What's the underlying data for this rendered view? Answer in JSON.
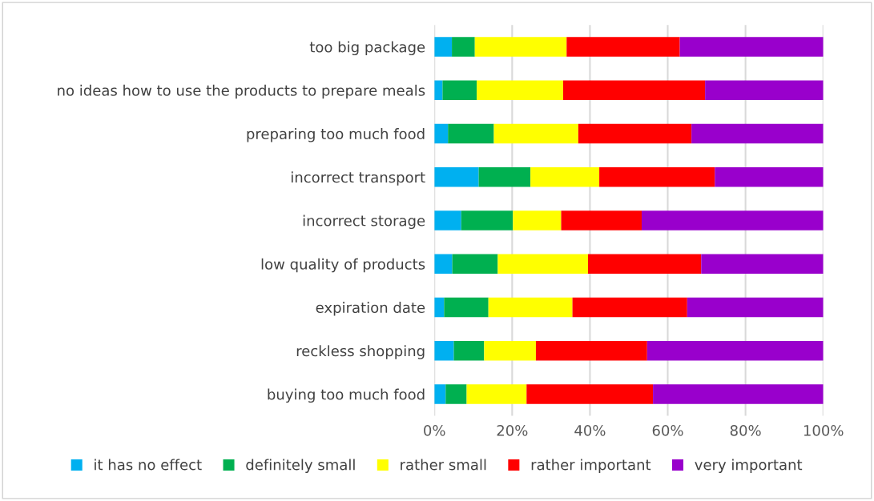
{
  "chart_data": {
    "type": "bar",
    "orientation": "horizontal",
    "stacked": true,
    "categories": [
      "too big package",
      "no ideas how to use the products to prepare meals",
      "preparing too much food",
      "incorrect transport",
      "incorrect storage",
      "low quality of products",
      "expiration date",
      "reckless shopping",
      "buying too much food"
    ],
    "series": [
      {
        "name": "it has no effect",
        "color": "#00b0f0",
        "values": [
          4.5,
          2.1,
          3.5,
          11.4,
          6.9,
          4.6,
          2.5,
          5.0,
          2.9
        ]
      },
      {
        "name": "definitely small",
        "color": "#00b050",
        "values": [
          5.9,
          8.8,
          11.8,
          13.3,
          13.3,
          11.7,
          11.4,
          7.8,
          5.4
        ]
      },
      {
        "name": "rather small",
        "color": "#ffff00",
        "values": [
          23.6,
          22.2,
          21.7,
          17.7,
          12.4,
          23.2,
          21.6,
          13.3,
          15.4
        ]
      },
      {
        "name": "rather important",
        "color": "#ff0000",
        "values": [
          29.1,
          36.5,
          29.1,
          29.7,
          20.7,
          29.1,
          29.5,
          28.6,
          32.5
        ]
      },
      {
        "name": "very important",
        "color": "#9900cc",
        "values": [
          36.9,
          30.4,
          33.9,
          27.9,
          46.7,
          31.4,
          35.0,
          45.3,
          43.8
        ]
      }
    ],
    "xlim": [
      0,
      100
    ],
    "xticks": [
      {
        "value": 0,
        "label": "0%"
      },
      {
        "value": 20,
        "label": "20%"
      },
      {
        "value": 40,
        "label": "40%"
      },
      {
        "value": 60,
        "label": "60%"
      },
      {
        "value": 80,
        "label": "80%"
      },
      {
        "value": 100,
        "label": "100%"
      }
    ],
    "grid": "x",
    "legend": "bottom"
  }
}
